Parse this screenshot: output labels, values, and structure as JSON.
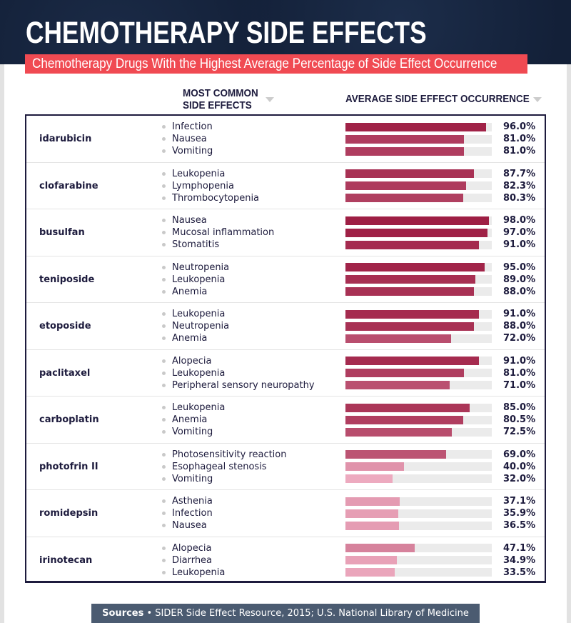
{
  "title": "CHEMOTHERAPY SIDE EFFECTS",
  "subtitle": "Chemotherapy Drugs With the Highest Average Percentage of Side Effect Occurrence",
  "columns": {
    "effects_line1": "MOST COMMON",
    "effects_line2": "SIDE EFFECTS",
    "occurrence": "AVERAGE SIDE EFFECT OCCURRENCE"
  },
  "footer": {
    "label": "Sources",
    "text": " • SIDER Side Effect Resource, 2015; U.S. National Library of Medicine"
  },
  "chart_data": {
    "type": "bar",
    "title": "CHEMOTHERAPY SIDE EFFECTS",
    "xlabel": "AVERAGE SIDE EFFECT OCCURRENCE",
    "xlim": [
      0,
      100
    ],
    "drugs": [
      {
        "name": "idarubicin",
        "effects": [
          {
            "label": "Infection",
            "value": 96.0,
            "text": "96.0%"
          },
          {
            "label": "Nausea",
            "value": 81.0,
            "text": "81.0%"
          },
          {
            "label": "Vomiting",
            "value": 81.0,
            "text": "81.0%"
          }
        ]
      },
      {
        "name": "clofarabine",
        "effects": [
          {
            "label": "Leukopenia",
            "value": 87.7,
            "text": "87.7%"
          },
          {
            "label": "Lymphopenia",
            "value": 82.3,
            "text": "82.3%"
          },
          {
            "label": "Thrombocytopenia",
            "value": 80.3,
            "text": "80.3%"
          }
        ]
      },
      {
        "name": "busulfan",
        "effects": [
          {
            "label": "Nausea",
            "value": 98.0,
            "text": "98.0%"
          },
          {
            "label": "Mucosal inflammation",
            "value": 97.0,
            "text": "97.0%"
          },
          {
            "label": "Stomatitis",
            "value": 91.0,
            "text": "91.0%"
          }
        ]
      },
      {
        "name": "teniposide",
        "effects": [
          {
            "label": "Neutropenia",
            "value": 95.0,
            "text": "95.0%"
          },
          {
            "label": "Leukopenia",
            "value": 89.0,
            "text": "89.0%"
          },
          {
            "label": "Anemia",
            "value": 88.0,
            "text": "88.0%"
          }
        ]
      },
      {
        "name": "etoposide",
        "effects": [
          {
            "label": "Leukopenia",
            "value": 91.0,
            "text": "91.0%"
          },
          {
            "label": "Neutropenia",
            "value": 88.0,
            "text": "88.0%"
          },
          {
            "label": "Anemia",
            "value": 72.0,
            "text": "72.0%"
          }
        ]
      },
      {
        "name": "paclitaxel",
        "effects": [
          {
            "label": "Alopecia",
            "value": 91.0,
            "text": "91.0%"
          },
          {
            "label": "Leukopenia",
            "value": 81.0,
            "text": "81.0%"
          },
          {
            "label": "Peripheral sensory neuropathy",
            "value": 71.0,
            "text": "71.0%"
          }
        ]
      },
      {
        "name": "carboplatin",
        "effects": [
          {
            "label": "Leukopenia",
            "value": 85.0,
            "text": "85.0%"
          },
          {
            "label": "Anemia",
            "value": 80.5,
            "text": "80.5%"
          },
          {
            "label": "Vomiting",
            "value": 72.5,
            "text": "72.5%"
          }
        ]
      },
      {
        "name": "photofrin II",
        "effects": [
          {
            "label": "Photosensitivity reaction",
            "value": 69.0,
            "text": "69.0%"
          },
          {
            "label": "Esophageal stenosis",
            "value": 40.0,
            "text": "40.0%"
          },
          {
            "label": "Vomiting",
            "value": 32.0,
            "text": "32.0%"
          }
        ]
      },
      {
        "name": "romidepsin",
        "effects": [
          {
            "label": "Asthenia",
            "value": 37.1,
            "text": "37.1%"
          },
          {
            "label": "Infection",
            "value": 35.9,
            "text": "35.9%"
          },
          {
            "label": "Nausea",
            "value": 36.5,
            "text": "36.5%"
          }
        ]
      },
      {
        "name": "irinotecan",
        "effects": [
          {
            "label": "Alopecia",
            "value": 47.1,
            "text": "47.1%"
          },
          {
            "label": "Diarrhea",
            "value": 34.9,
            "text": "34.9%"
          },
          {
            "label": "Leukopenia",
            "value": 33.5,
            "text": "33.5%"
          }
        ]
      }
    ]
  },
  "colors": {
    "high": "#9e1f44",
    "low": "#f2b3c7",
    "track": "#ebebeb",
    "accent": "#f04a52",
    "navy": "#1d1b3d"
  }
}
